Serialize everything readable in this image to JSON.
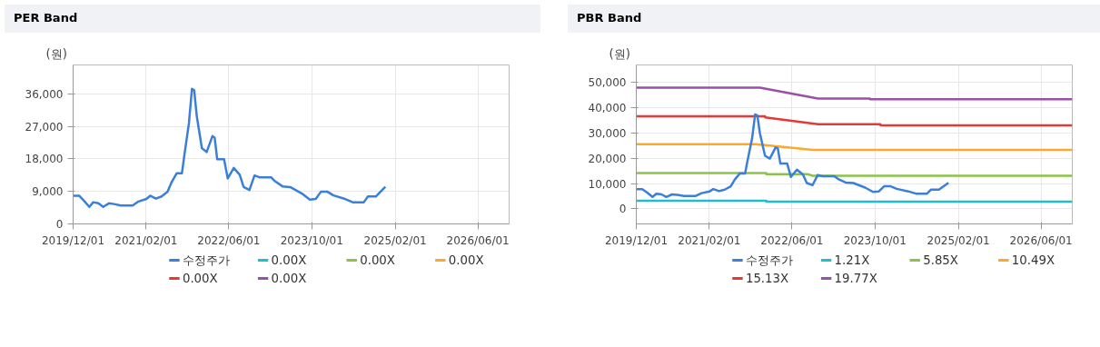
{
  "chart_data": [
    {
      "type": "line",
      "title": "PER Band",
      "ylabel": "(원)",
      "grid": true,
      "legend": "bottom",
      "xlim": [
        "2019-12-01",
        "2026-12-01"
      ],
      "xticks": [
        {
          "value": "2019-12-01",
          "label": "2019/12/01"
        },
        {
          "value": "2021-02-01",
          "label": "2021/02/01"
        },
        {
          "value": "2022-06-01",
          "label": "2022/06/01"
        },
        {
          "value": "2023-10-01",
          "label": "2023/10/01"
        },
        {
          "value": "2025-02-01",
          "label": "2025/02/01"
        },
        {
          "value": "2026-06-01",
          "label": "2026/06/01"
        }
      ],
      "ylim": [
        0,
        44000
      ],
      "yticks": [
        0,
        {
          "value": 9000,
          "label": "9,000"
        },
        {
          "value": 18000,
          "label": "18,000"
        },
        {
          "value": 27000,
          "label": "27,000"
        },
        {
          "value": 36000,
          "label": "36,000"
        }
      ],
      "series": [
        {
          "name": "수정주가",
          "color": "#3a7fd9",
          "x": [
            "2019-12-01",
            "2020-01-05",
            "2020-02-01",
            "2020-03-05",
            "2020-03-28",
            "2020-04-27",
            "2020-05-25",
            "2020-06-28",
            "2020-07-28",
            "2020-09-06",
            "2020-11-14",
            "2020-12-18",
            "2021-02-03",
            "2021-02-25",
            "2021-03-30",
            "2021-05-03",
            "2021-06-07",
            "2021-06-30",
            "2021-07-30",
            "2021-08-30",
            "2021-09-13",
            "2021-10-10",
            "2021-10-28",
            "2021-11-10",
            "2021-11-25",
            "2021-12-25",
            "2022-01-22",
            "2022-02-25",
            "2022-03-10",
            "2022-03-25",
            "2022-05-04",
            "2022-05-26",
            "2022-06-30",
            "2022-08-04",
            "2022-08-27",
            "2022-09-30",
            "2022-10-30",
            "2022-11-27",
            "2023-02-04",
            "2023-02-27",
            "2023-04-12",
            "2023-05-27",
            "2023-08-04",
            "2023-09-19",
            "2023-10-24",
            "2023-11-23",
            "2024-01-01",
            "2024-02-05",
            "2024-04-13",
            "2024-05-28",
            "2024-08-01",
            "2024-08-25",
            "2024-10-10",
            "2024-12-05"
          ],
          "values": [
            7800,
            7800,
            6500,
            4700,
            6000,
            5700,
            4700,
            5700,
            5500,
            5100,
            5100,
            6200,
            6900,
            7800,
            7000,
            7600,
            8900,
            11500,
            14000,
            14000,
            18900,
            27800,
            37400,
            37000,
            29900,
            21000,
            19900,
            24300,
            23900,
            17900,
            17900,
            12600,
            15500,
            13600,
            10200,
            9400,
            13400,
            12900,
            12900,
            11800,
            10400,
            10200,
            8400,
            6700,
            6900,
            8900,
            8900,
            7900,
            6900,
            6000,
            6000,
            7600,
            7600,
            10300
          ]
        },
        {
          "name": "0.00X",
          "color": "#1fbcd2"
        },
        {
          "name": "0.00X",
          "color": "#8bc34a"
        },
        {
          "name": "0.00X",
          "color": "#ffa726"
        },
        {
          "name": "0.00X",
          "color": "#e53935"
        },
        {
          "name": "0.00X",
          "color": "#9c4fa8"
        }
      ]
    },
    {
      "type": "line",
      "title": "PBR Band",
      "ylabel": "(원)",
      "grid": true,
      "legend": "bottom",
      "xlim": [
        "2019-12-01",
        "2026-12-01"
      ],
      "xticks": [
        {
          "value": "2019-12-01",
          "label": "2019/12/01"
        },
        {
          "value": "2021-02-01",
          "label": "2021/02/01"
        },
        {
          "value": "2022-06-01",
          "label": "2022/06/01"
        },
        {
          "value": "2023-10-01",
          "label": "2023/10/01"
        },
        {
          "value": "2025-02-01",
          "label": "2025/02/01"
        },
        {
          "value": "2026-06-01",
          "label": "2026/06/01"
        }
      ],
      "ylim": [
        -6000,
        57000
      ],
      "yticks": [
        0,
        {
          "value": 10000,
          "label": "10,000"
        },
        {
          "value": 20000,
          "label": "20,000"
        },
        {
          "value": 30000,
          "label": "30,000"
        },
        {
          "value": 40000,
          "label": "40,000"
        },
        {
          "value": 50000,
          "label": "50,000"
        }
      ],
      "series": [
        {
          "name": "수정주가",
          "color": "#3a7fd9",
          "x": [
            "2019-12-01",
            "2020-01-05",
            "2020-02-01",
            "2020-03-05",
            "2020-03-28",
            "2020-04-27",
            "2020-05-25",
            "2020-06-28",
            "2020-07-28",
            "2020-09-06",
            "2020-11-14",
            "2020-12-18",
            "2021-02-03",
            "2021-02-25",
            "2021-03-30",
            "2021-05-03",
            "2021-06-07",
            "2021-06-30",
            "2021-07-30",
            "2021-08-30",
            "2021-09-13",
            "2021-10-10",
            "2021-10-28",
            "2021-11-10",
            "2021-11-25",
            "2021-12-25",
            "2022-01-22",
            "2022-02-25",
            "2022-03-10",
            "2022-03-25",
            "2022-05-04",
            "2022-05-26",
            "2022-06-30",
            "2022-08-04",
            "2022-08-27",
            "2022-09-30",
            "2022-10-30",
            "2022-11-27",
            "2023-02-04",
            "2023-02-27",
            "2023-04-12",
            "2023-05-27",
            "2023-08-04",
            "2023-09-19",
            "2023-10-24",
            "2023-11-23",
            "2024-01-01",
            "2024-02-05",
            "2024-04-13",
            "2024-05-28",
            "2024-08-01",
            "2024-08-25",
            "2024-10-10",
            "2024-12-05"
          ],
          "values": [
            7800,
            7800,
            6500,
            4700,
            6000,
            5700,
            4700,
            5700,
            5500,
            5100,
            5100,
            6200,
            6900,
            7800,
            7000,
            7600,
            8900,
            11500,
            14000,
            14000,
            18900,
            27800,
            37400,
            37000,
            29900,
            21000,
            19900,
            24300,
            23900,
            17900,
            17900,
            12600,
            15500,
            13600,
            10200,
            9400,
            13400,
            12900,
            12900,
            11800,
            10400,
            10200,
            8400,
            6700,
            6900,
            8900,
            8900,
            7900,
            6900,
            6000,
            6000,
            7600,
            7600,
            10300
          ]
        },
        {
          "name": "1.21X",
          "color": "#1fbcd2",
          "x": [
            "2019-12-01",
            "2022-01-01",
            "2022-01-02",
            "2026-12-01"
          ],
          "values": [
            3200,
            3200,
            2800,
            2800
          ]
        },
        {
          "name": "5.85X",
          "color": "#8bc34a",
          "x": [
            "2019-12-01",
            "2022-01-01",
            "2022-01-02",
            "2022-09-01",
            "2022-10-01",
            "2026-12-01"
          ],
          "values": [
            14200,
            14200,
            13700,
            13700,
            13100,
            13100
          ]
        },
        {
          "name": "10.49X",
          "color": "#ffa726",
          "x": [
            "2019-12-01",
            "2021-11-01",
            "2022-10-01",
            "2026-12-01"
          ],
          "values": [
            25600,
            25600,
            23300,
            23300
          ]
        },
        {
          "name": "15.13X",
          "color": "#e53935",
          "x": [
            "2019-12-01",
            "2021-12-25",
            "2021-12-26",
            "2022-11-01",
            "2023-11-01",
            "2023-11-02",
            "2026-12-01"
          ],
          "values": [
            36700,
            36700,
            36200,
            33500,
            33500,
            33100,
            33100
          ]
        },
        {
          "name": "19.77X",
          "color": "#9c4fa8",
          "x": [
            "2019-12-01",
            "2021-11-25",
            "2022-11-01",
            "2023-09-01",
            "2023-09-02",
            "2026-12-01"
          ],
          "values": [
            48000,
            48000,
            43700,
            43700,
            43400,
            43400
          ]
        }
      ]
    }
  ]
}
